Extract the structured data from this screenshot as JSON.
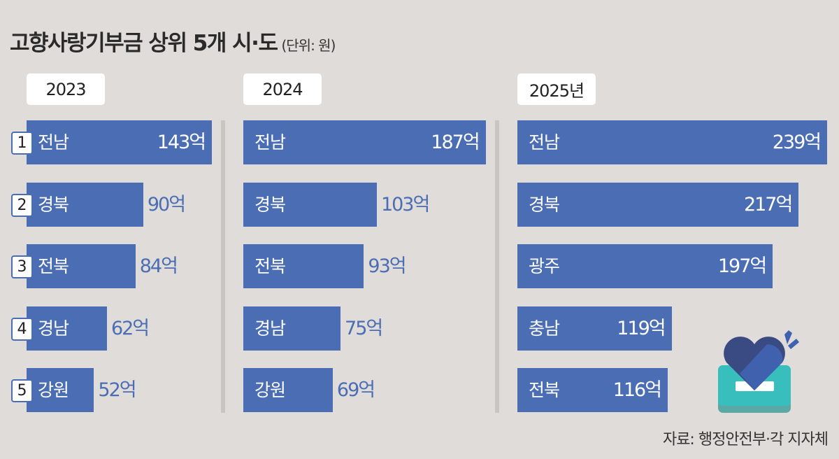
{
  "chart_data": {
    "type": "bar",
    "orientation": "horizontal",
    "title": "고향사랑기부금 상위 5개 시·도",
    "unit_note": "(단위: 원)",
    "value_suffix": "억",
    "panels": [
      {
        "year": "2023",
        "categories": [
          "전남",
          "경북",
          "전북",
          "경남",
          "강원"
        ],
        "values": [
          143,
          90,
          84,
          62,
          52
        ]
      },
      {
        "year": "2024",
        "categories": [
          "전남",
          "경북",
          "전북",
          "경남",
          "강원"
        ],
        "values": [
          187,
          103,
          93,
          75,
          69
        ]
      },
      {
        "year": "2025년",
        "categories": [
          "전남",
          "경북",
          "광주",
          "충남",
          "전북"
        ],
        "values": [
          239,
          217,
          197,
          119,
          116
        ]
      }
    ],
    "ranks": [
      "1",
      "2",
      "3",
      "4",
      "5"
    ],
    "colors": {
      "bar": "#4b6db4",
      "background": "#e0dcd9",
      "label_outside": "#4b6db4"
    }
  },
  "source": "자료: 행정안전부·각 지자체"
}
